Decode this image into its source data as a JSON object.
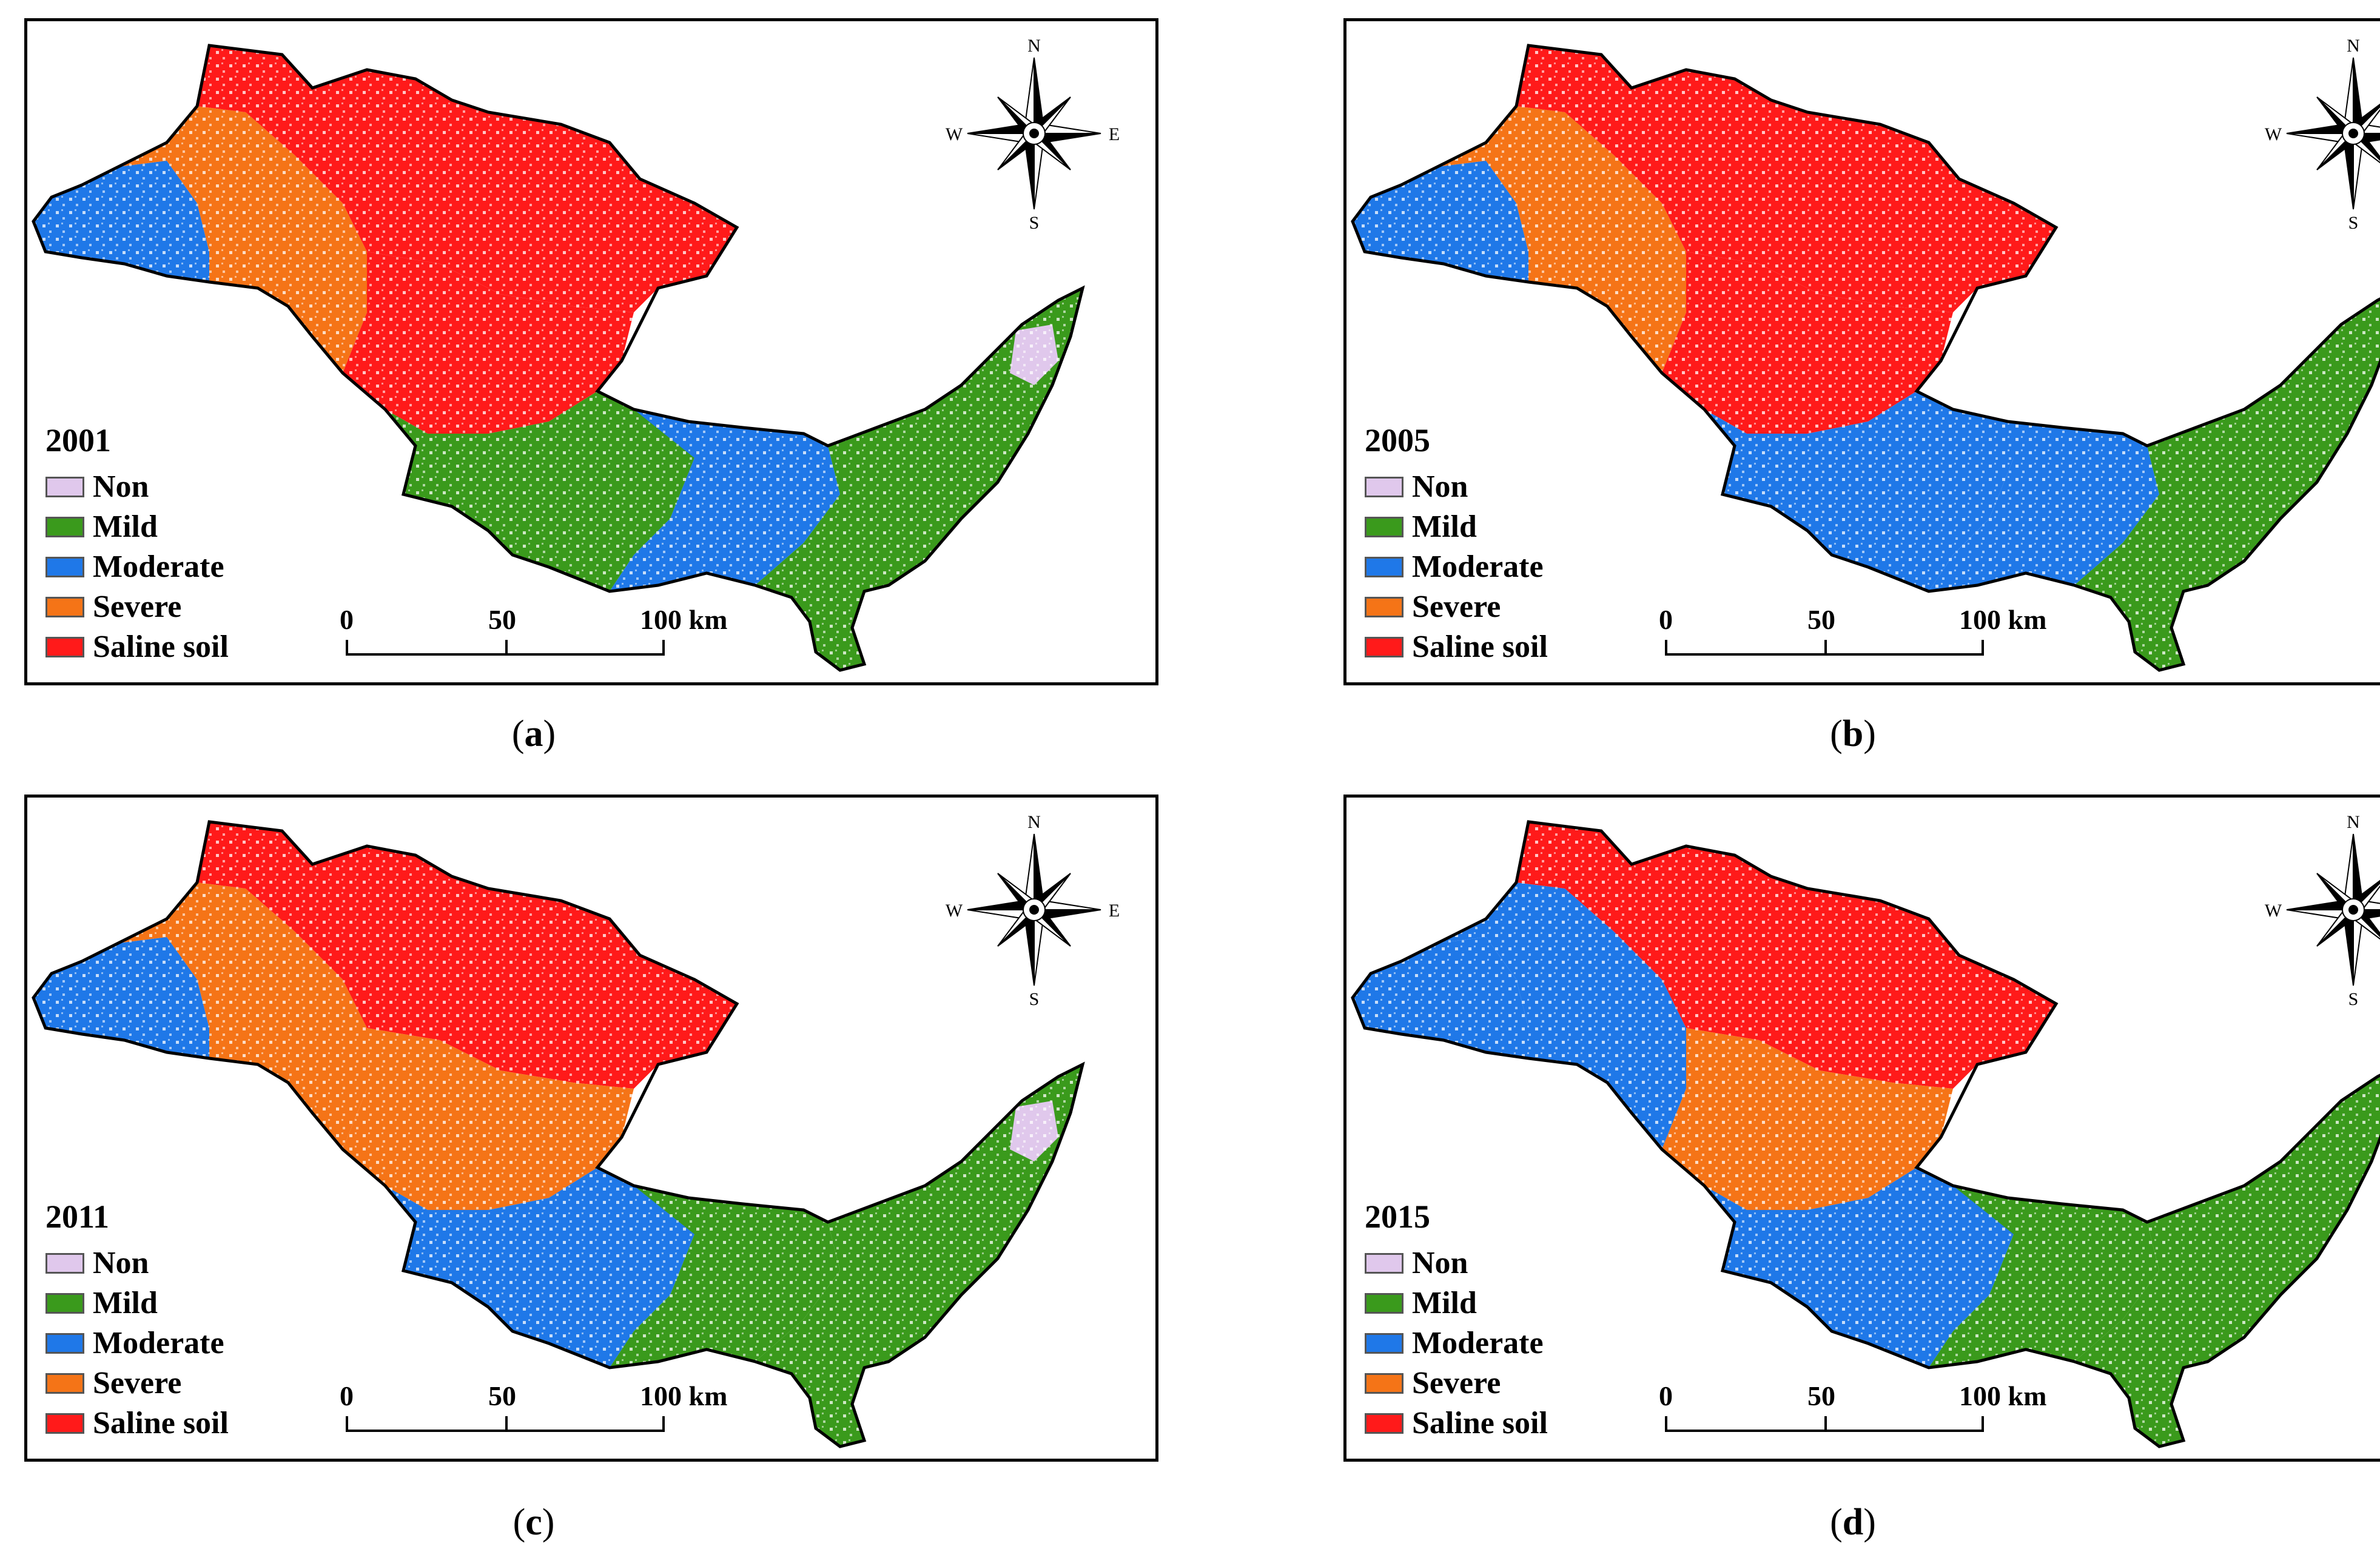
{
  "panels": [
    {
      "id": "a",
      "year": "2001",
      "caption_letter": "a",
      "regions": {
        "west": "moderate",
        "northwest": "severe",
        "north": "saline",
        "center": "saline",
        "south": "mild",
        "southcenter": "moderate",
        "east": "mild",
        "eastpatch": "non"
      }
    },
    {
      "id": "b",
      "year": "2005",
      "caption_letter": "b",
      "regions": {
        "west": "moderate",
        "northwest": "severe",
        "north": "saline",
        "center": "saline",
        "south": "moderate",
        "southcenter": "moderate",
        "east": "mild",
        "eastpatch": "mild"
      }
    },
    {
      "id": "c",
      "year": "2011",
      "caption_letter": "c",
      "regions": {
        "west": "moderate",
        "northwest": "severe",
        "north": "saline",
        "center": "severe",
        "south": "moderate",
        "southcenter": "mild",
        "east": "mild",
        "eastpatch": "non"
      }
    },
    {
      "id": "d",
      "year": "2015",
      "caption_letter": "d",
      "regions": {
        "west": "moderate",
        "northwest": "moderate",
        "north": "saline",
        "center": "severe",
        "south": "moderate",
        "southcenter": "mild",
        "east": "mild",
        "eastpatch": "mild"
      }
    }
  ],
  "legend": [
    {
      "key": "non",
      "label": "Non",
      "color": "#e0c8ec"
    },
    {
      "key": "mild",
      "label": "Mild",
      "color": "#3a9a1c"
    },
    {
      "key": "moderate",
      "label": "Moderate",
      "color": "#1f78e8"
    },
    {
      "key": "severe",
      "label": "Severe",
      "color": "#f57417"
    },
    {
      "key": "saline",
      "label": "Saline soil",
      "color": "#ff1a1a"
    }
  ],
  "scale": {
    "labels": [
      "0",
      "50",
      "100 km"
    ]
  },
  "compass": {
    "n": "N",
    "s": "S",
    "e": "E",
    "w": "W"
  }
}
